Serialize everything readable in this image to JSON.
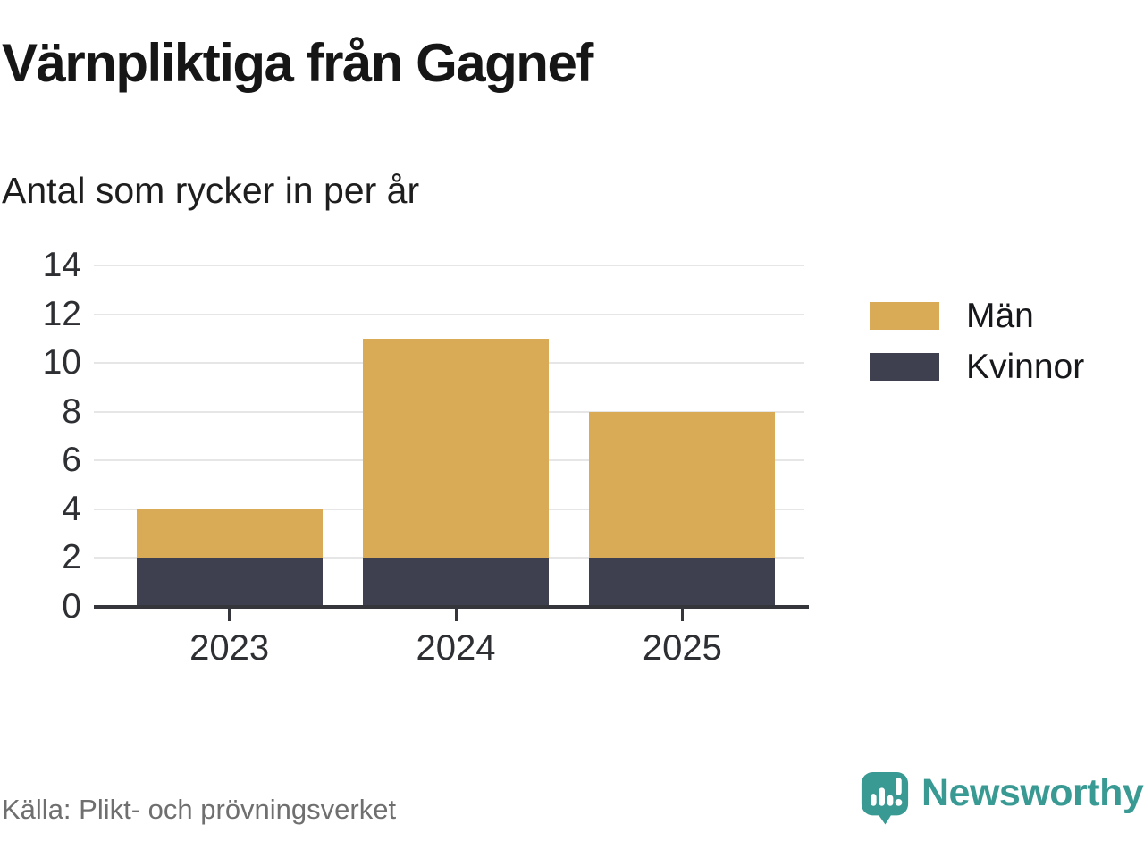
{
  "header": {
    "title": "Värnpliktiga från Gagnef",
    "subtitle": "Antal som rycker in per år"
  },
  "chart_data": {
    "type": "bar",
    "stacked": true,
    "title": "Värnpliktiga från Gagnef",
    "subtitle": "Antal som rycker in per år",
    "categories": [
      "2023",
      "2024",
      "2025"
    ],
    "series": [
      {
        "name": "Män",
        "color": "#d9ab57",
        "values": [
          2,
          9,
          6
        ]
      },
      {
        "name": "Kvinnor",
        "color": "#3e3f4f",
        "values": [
          2,
          2,
          2
        ]
      }
    ],
    "totals": [
      4,
      11,
      8
    ],
    "ylim": [
      0,
      14
    ],
    "yticks": [
      0,
      2,
      4,
      6,
      8,
      10,
      12,
      14
    ],
    "xlabel": "",
    "ylabel": "",
    "grid": true,
    "legend_position": "right"
  },
  "legend": {
    "items": [
      {
        "label": "Män",
        "color": "#d9ab57"
      },
      {
        "label": "Kvinnor",
        "color": "#3e3f4f"
      }
    ]
  },
  "footer": {
    "source": "Källa: Plikt- och prövningsverket",
    "brand": "Newsworthy"
  },
  "colors": {
    "men_bar": "#d9ab57",
    "women_bar": "#3e3f4f",
    "brand_teal": "#399a94",
    "axis": "#35363c",
    "gridline": "#e6e6e6",
    "source_text": "#6f6f6f"
  }
}
